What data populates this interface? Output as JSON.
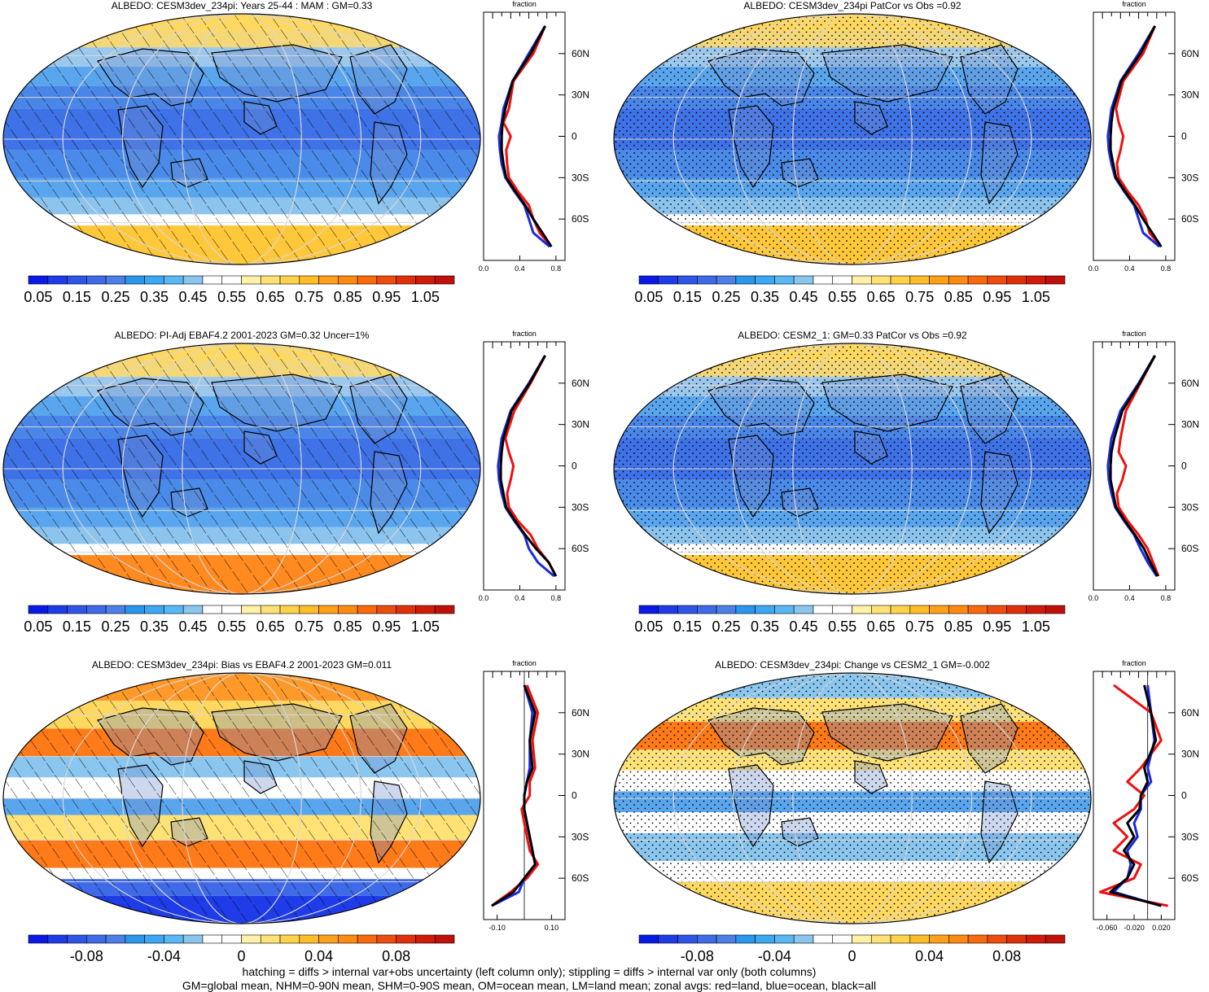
{
  "panels": [
    {
      "title": "ALBEDO: CESM3dev_234pi: Years 25-44 : MAM : GM=0.33",
      "pattern": "hatch",
      "scheme": "abs",
      "zonal_title": "fraction",
      "zonal_xticks": [
        "0.0",
        "0.4",
        "0.8"
      ],
      "zonal_yticks": [
        "60N",
        "30N",
        "0",
        "30S",
        "60S"
      ]
    },
    {
      "title": "ALBEDO: CESM3dev_234pi PatCor vs Obs =0.92",
      "pattern": "stipple",
      "scheme": "abs",
      "zonal_title": "fraction",
      "zonal_xticks": [
        "0.0",
        "0.4",
        "0.8"
      ],
      "zonal_yticks": [
        "60N",
        "30N",
        "0",
        "30S",
        "60S"
      ]
    },
    {
      "title": "ALBEDO: PI-Adj EBAF4.2 2001-2023 GM=0.32 Uncer=1%",
      "pattern": "hatch",
      "scheme": "abs",
      "zonal_title": "fraction",
      "zonal_xticks": [
        "0.0",
        "0.4",
        "0.8"
      ],
      "zonal_yticks": [
        "60N",
        "30N",
        "0",
        "30S",
        "60S"
      ]
    },
    {
      "title": "ALBEDO: CESM2_1: GM=0.33 PatCor vs Obs =0.92",
      "pattern": "stipple",
      "scheme": "abs",
      "zonal_title": "fraction",
      "zonal_xticks": [
        "0.0",
        "0.4",
        "0.8"
      ],
      "zonal_yticks": [
        "60N",
        "30N",
        "0",
        "30S",
        "60S"
      ]
    },
    {
      "title": "ALBEDO: CESM3dev_234pi: Bias vs EBAF4.2 2001-2023 GM=0.011",
      "pattern": "hatch",
      "scheme": "diff",
      "zonal_title": "fraction",
      "zonal_xticks": [
        "-0.10",
        "0.10"
      ],
      "zonal_yticks": [
        "60N",
        "30N",
        "0",
        "30S",
        "60S"
      ]
    },
    {
      "title": "ALBEDO: CESM3dev_234pi: Change vs CESM2_1 GM=-0.002",
      "pattern": "stipple",
      "scheme": "diff",
      "zonal_title": "fraction",
      "zonal_xticks": [
        "-0.060",
        "-0.020",
        "0.020"
      ],
      "zonal_yticks": [
        "60N",
        "30N",
        "0",
        "30S",
        "60S"
      ]
    }
  ],
  "colorbars": {
    "abs": {
      "labels": [
        "0.05",
        "0.15",
        "0.25",
        "0.35",
        "0.45",
        "0.55",
        "0.65",
        "0.75",
        "0.85",
        "0.95",
        "1.05"
      ],
      "colors": [
        "#0a1ae6",
        "#1e3ce8",
        "#2f55e6",
        "#3f6ae8",
        "#4c7fe8",
        "#2a96ec",
        "#3aa8f2",
        "#5ab8f4",
        "#8ac6ee",
        "#ffffff",
        "#ffffff",
        "#fff2a8",
        "#ffe276",
        "#ffd24a",
        "#ffbd28",
        "#ffa018",
        "#ff8a10",
        "#f86a0c",
        "#ec4c0c",
        "#e0300a",
        "#d01a0a",
        "#c0100a"
      ]
    },
    "diff": {
      "labels": [
        "-0.08",
        "-0.04",
        "0",
        "0.04",
        "0.08"
      ],
      "colors": [
        "#0a1ae6",
        "#1e3ce8",
        "#2f55e6",
        "#3f6ae8",
        "#4c7fe8",
        "#2a96ec",
        "#3aa8f2",
        "#5ab8f4",
        "#8ac6ee",
        "#ffffff",
        "#ffffff",
        "#fff2a8",
        "#ffe276",
        "#ffd24a",
        "#ffbd28",
        "#ffa018",
        "#ff8a10",
        "#f86a0c",
        "#ec4c0c",
        "#e0300a",
        "#d01a0a",
        "#c0100a"
      ]
    }
  },
  "chart_data": [
    {
      "type": "heatmap",
      "title": "ALBEDO: CESM3dev_234pi: Years 25-44 : MAM : GM=0.33",
      "colorbar_range": [
        0.05,
        1.05
      ],
      "zonal_profile": {
        "title": "fraction",
        "xlim": [
          0.0,
          0.9
        ],
        "ylim": [
          -90,
          90
        ],
        "lat": [
          80,
          60,
          40,
          20,
          10,
          0,
          -10,
          -20,
          -30,
          -40,
          -50,
          -60,
          -70,
          -80
        ],
        "series": [
          {
            "color": "red",
            "values": [
              0.68,
              0.55,
              0.33,
              0.28,
              0.22,
              0.3,
              0.25,
              0.26,
              0.28,
              0.38,
              0.5,
              0.55,
              0.62,
              0.75
            ]
          },
          {
            "color": "blue",
            "values": [
              0.68,
              0.5,
              0.32,
              0.22,
              0.2,
              0.17,
              0.18,
              0.2,
              0.24,
              0.34,
              0.45,
              0.5,
              0.55,
              0.73
            ]
          },
          {
            "color": "black",
            "values": [
              0.68,
              0.52,
              0.32,
              0.24,
              0.21,
              0.2,
              0.2,
              0.22,
              0.25,
              0.35,
              0.46,
              0.55,
              0.65,
              0.75
            ]
          }
        ]
      }
    },
    {
      "type": "heatmap",
      "title": "ALBEDO: CESM3dev_234pi PatCor vs Obs =0.92",
      "colorbar_range": [
        0.05,
        1.05
      ],
      "zonal_profile": {
        "title": "fraction",
        "xlim": [
          0.0,
          0.9
        ],
        "ylim": [
          -90,
          90
        ],
        "lat": [
          80,
          60,
          40,
          20,
          10,
          0,
          -10,
          -20,
          -30,
          -40,
          -50,
          -60,
          -70,
          -80
        ],
        "series": [
          {
            "color": "red",
            "values": [
              0.68,
              0.55,
              0.33,
              0.25,
              0.28,
              0.33,
              0.3,
              0.26,
              0.28,
              0.38,
              0.5,
              0.58,
              0.62,
              0.75
            ]
          },
          {
            "color": "blue",
            "values": [
              0.68,
              0.5,
              0.3,
              0.2,
              0.18,
              0.16,
              0.17,
              0.2,
              0.24,
              0.34,
              0.45,
              0.5,
              0.55,
              0.73
            ]
          },
          {
            "color": "black",
            "values": [
              0.68,
              0.52,
              0.31,
              0.22,
              0.2,
              0.19,
              0.19,
              0.22,
              0.25,
              0.35,
              0.46,
              0.55,
              0.65,
              0.75
            ]
          }
        ]
      }
    },
    {
      "type": "heatmap",
      "title": "ALBEDO: PI-Adj EBAF4.2 2001-2023 GM=0.32 Uncer=1%",
      "colorbar_range": [
        0.05,
        1.05
      ],
      "zonal_profile": {
        "title": "fraction",
        "xlim": [
          0.0,
          0.9
        ],
        "ylim": [
          -90,
          90
        ],
        "lat": [
          80,
          60,
          40,
          20,
          10,
          0,
          -10,
          -20,
          -30,
          -40,
          -50,
          -60,
          -70,
          -80
        ],
        "series": [
          {
            "color": "red",
            "values": [
              0.68,
              0.52,
              0.34,
              0.24,
              0.28,
              0.33,
              0.3,
              0.26,
              0.28,
              0.38,
              0.52,
              0.6,
              0.72,
              0.8
            ]
          },
          {
            "color": "blue",
            "values": [
              0.68,
              0.5,
              0.3,
              0.2,
              0.18,
              0.16,
              0.17,
              0.2,
              0.24,
              0.34,
              0.45,
              0.5,
              0.6,
              0.78
            ]
          },
          {
            "color": "black",
            "values": [
              0.68,
              0.51,
              0.31,
              0.22,
              0.2,
              0.19,
              0.19,
              0.22,
              0.25,
              0.35,
              0.46,
              0.58,
              0.72,
              0.8
            ]
          }
        ]
      }
    },
    {
      "type": "heatmap",
      "title": "ALBEDO: CESM2_1: GM=0.33 PatCor vs Obs =0.92",
      "colorbar_range": [
        0.05,
        1.05
      ],
      "zonal_profile": {
        "title": "fraction",
        "xlim": [
          0.0,
          0.9
        ],
        "ylim": [
          -90,
          90
        ],
        "lat": [
          80,
          60,
          40,
          20,
          10,
          0,
          -10,
          -20,
          -30,
          -40,
          -50,
          -60,
          -70,
          -80
        ],
        "series": [
          {
            "color": "red",
            "values": [
              0.68,
              0.52,
              0.36,
              0.3,
              0.28,
              0.36,
              0.32,
              0.26,
              0.28,
              0.38,
              0.5,
              0.6,
              0.66,
              0.72
            ]
          },
          {
            "color": "blue",
            "values": [
              0.68,
              0.5,
              0.3,
              0.2,
              0.18,
              0.16,
              0.17,
              0.2,
              0.24,
              0.34,
              0.45,
              0.52,
              0.6,
              0.7
            ]
          },
          {
            "color": "black",
            "values": [
              0.68,
              0.51,
              0.32,
              0.23,
              0.2,
              0.19,
              0.19,
              0.22,
              0.25,
              0.35,
              0.46,
              0.56,
              0.63,
              0.71
            ]
          }
        ]
      }
    },
    {
      "type": "heatmap",
      "title": "ALBEDO: CESM3dev_234pi: Bias vs EBAF4.2 2001-2023 GM=0.011",
      "colorbar_range": [
        -0.1,
        0.1
      ],
      "zonal_profile": {
        "title": "fraction",
        "xlim": [
          -0.15,
          0.15
        ],
        "ylim": [
          -90,
          90
        ],
        "lat": [
          80,
          60,
          40,
          20,
          10,
          0,
          -10,
          -20,
          -30,
          -40,
          -50,
          -60,
          -70,
          -80
        ],
        "series": [
          {
            "color": "red",
            "values": [
              0.01,
              0.05,
              0.03,
              0.04,
              0.02,
              0.02,
              -0.01,
              0.0,
              0.01,
              0.02,
              0.05,
              0.01,
              -0.05,
              -0.12
            ]
          },
          {
            "color": "blue",
            "values": [
              0.0,
              0.03,
              0.02,
              0.02,
              0.01,
              0.0,
              0.0,
              0.01,
              0.02,
              0.03,
              0.04,
              0.0,
              -0.02,
              -0.12
            ]
          },
          {
            "color": "black",
            "values": [
              0.0,
              0.04,
              0.02,
              0.03,
              0.01,
              0.0,
              0.0,
              0.01,
              0.02,
              0.03,
              0.04,
              0.0,
              -0.04,
              -0.12
            ]
          }
        ]
      }
    },
    {
      "type": "heatmap",
      "title": "ALBEDO: CESM3dev_234pi: Change vs CESM2_1 GM=-0.002",
      "colorbar_range": [
        -0.1,
        0.1
      ],
      "zonal_profile": {
        "title": "fraction",
        "xlim": [
          -0.08,
          0.04
        ],
        "ylim": [
          -90,
          90
        ],
        "lat": [
          80,
          60,
          40,
          20,
          10,
          0,
          -10,
          -20,
          -30,
          -40,
          -50,
          -60,
          -70,
          -80
        ],
        "series": [
          {
            "color": "red",
            "values": [
              -0.05,
              0.005,
              0.02,
              -0.01,
              -0.03,
              -0.005,
              -0.02,
              -0.05,
              -0.03,
              -0.05,
              -0.01,
              -0.02,
              -0.07,
              0.03
            ]
          },
          {
            "color": "blue",
            "values": [
              0.0,
              0.005,
              0.01,
              0.0,
              0.005,
              -0.01,
              -0.01,
              -0.02,
              -0.015,
              -0.03,
              -0.025,
              -0.03,
              -0.05,
              0.02
            ]
          },
          {
            "color": "black",
            "values": [
              -0.005,
              0.005,
              0.012,
              -0.005,
              0.0,
              -0.01,
              -0.012,
              -0.03,
              -0.02,
              -0.035,
              -0.02,
              -0.03,
              -0.055,
              0.02
            ]
          }
        ]
      }
    }
  ],
  "footer": {
    "line1": "hatching = diffs > internal var+obs uncertainty (left column only); stippling = diffs > internal var only (both columns)",
    "line2": "GM=global mean, NHM=0-90N mean, SHM=0-90S mean, OM=ocean mean, LM=land mean; zonal avgs: red=land, blue=ocean, black=all"
  }
}
